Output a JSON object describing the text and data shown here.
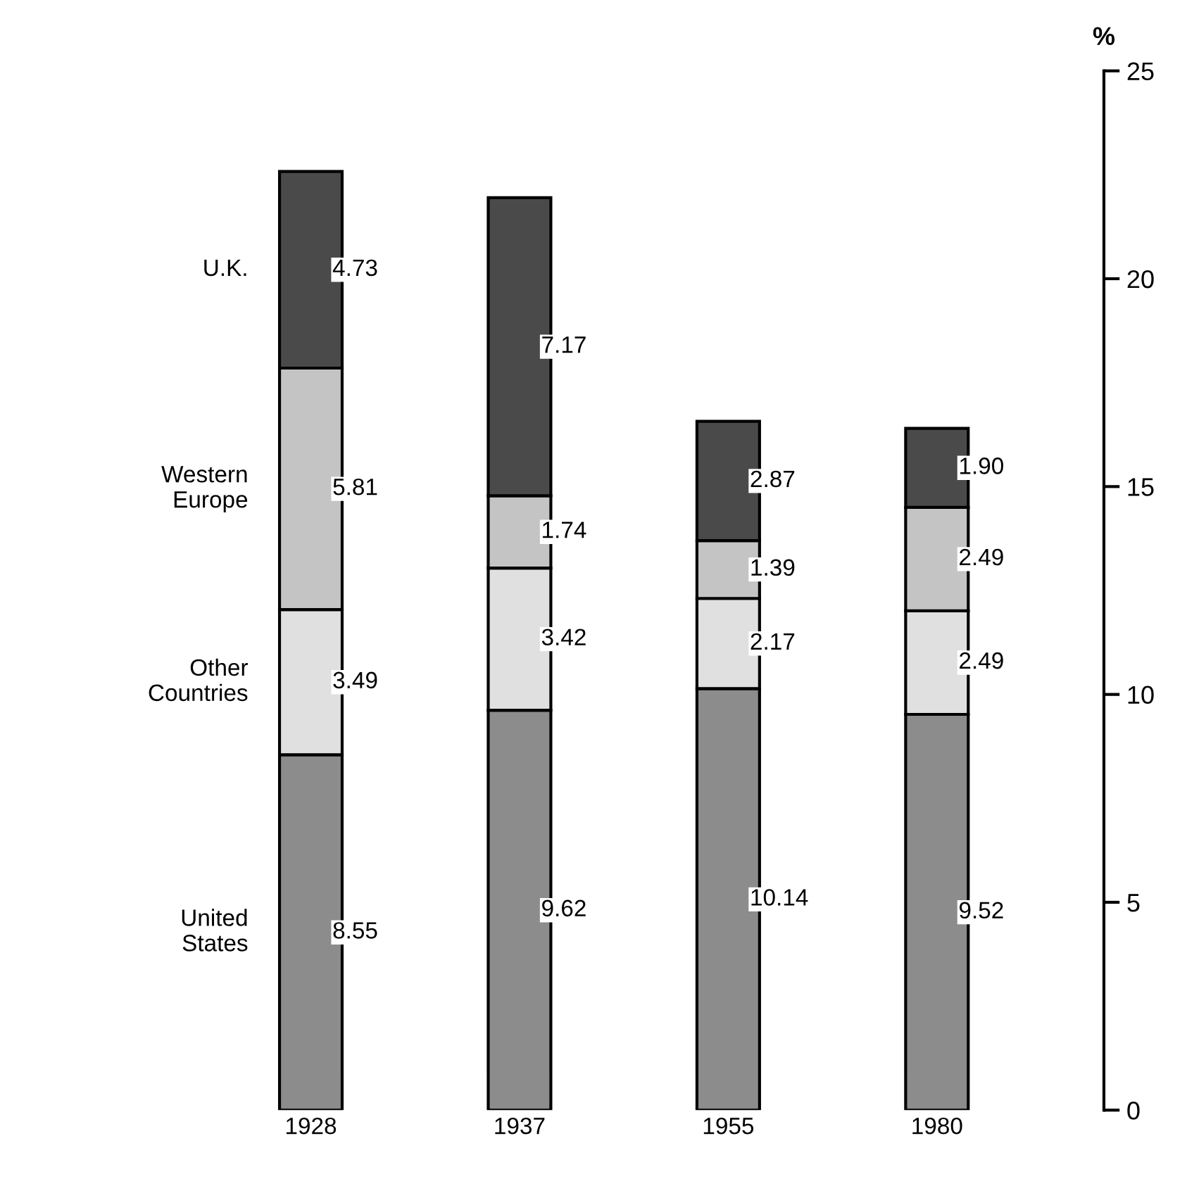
{
  "chart_data": {
    "type": "bar",
    "stacked": true,
    "ylabel": "%",
    "categories": [
      "1928",
      "1937",
      "1955",
      "1980"
    ],
    "series": [
      {
        "name": "United\nStates",
        "color": "#8c8c8c",
        "values": [
          8.55,
          9.62,
          10.14,
          9.52
        ]
      },
      {
        "name": "Other\nCountries",
        "color": "#e0e0e0",
        "values": [
          3.49,
          3.42,
          2.17,
          2.49
        ]
      },
      {
        "name": "Western\nEurope",
        "color": "#c4c4c4",
        "values": [
          5.81,
          1.74,
          1.39,
          2.49
        ]
      },
      {
        "name": "U.K.",
        "color": "#4a4a4a",
        "values": [
          4.73,
          7.17,
          2.87,
          1.9
        ],
        "value_labels": [
          "4.73",
          "7.17",
          "2.87",
          "1.90"
        ]
      }
    ],
    "ylim": [
      0,
      25
    ],
    "yticks": [
      0,
      5,
      10,
      15,
      20,
      25
    ],
    "data_labels": true,
    "legend": false,
    "grid": false
  }
}
